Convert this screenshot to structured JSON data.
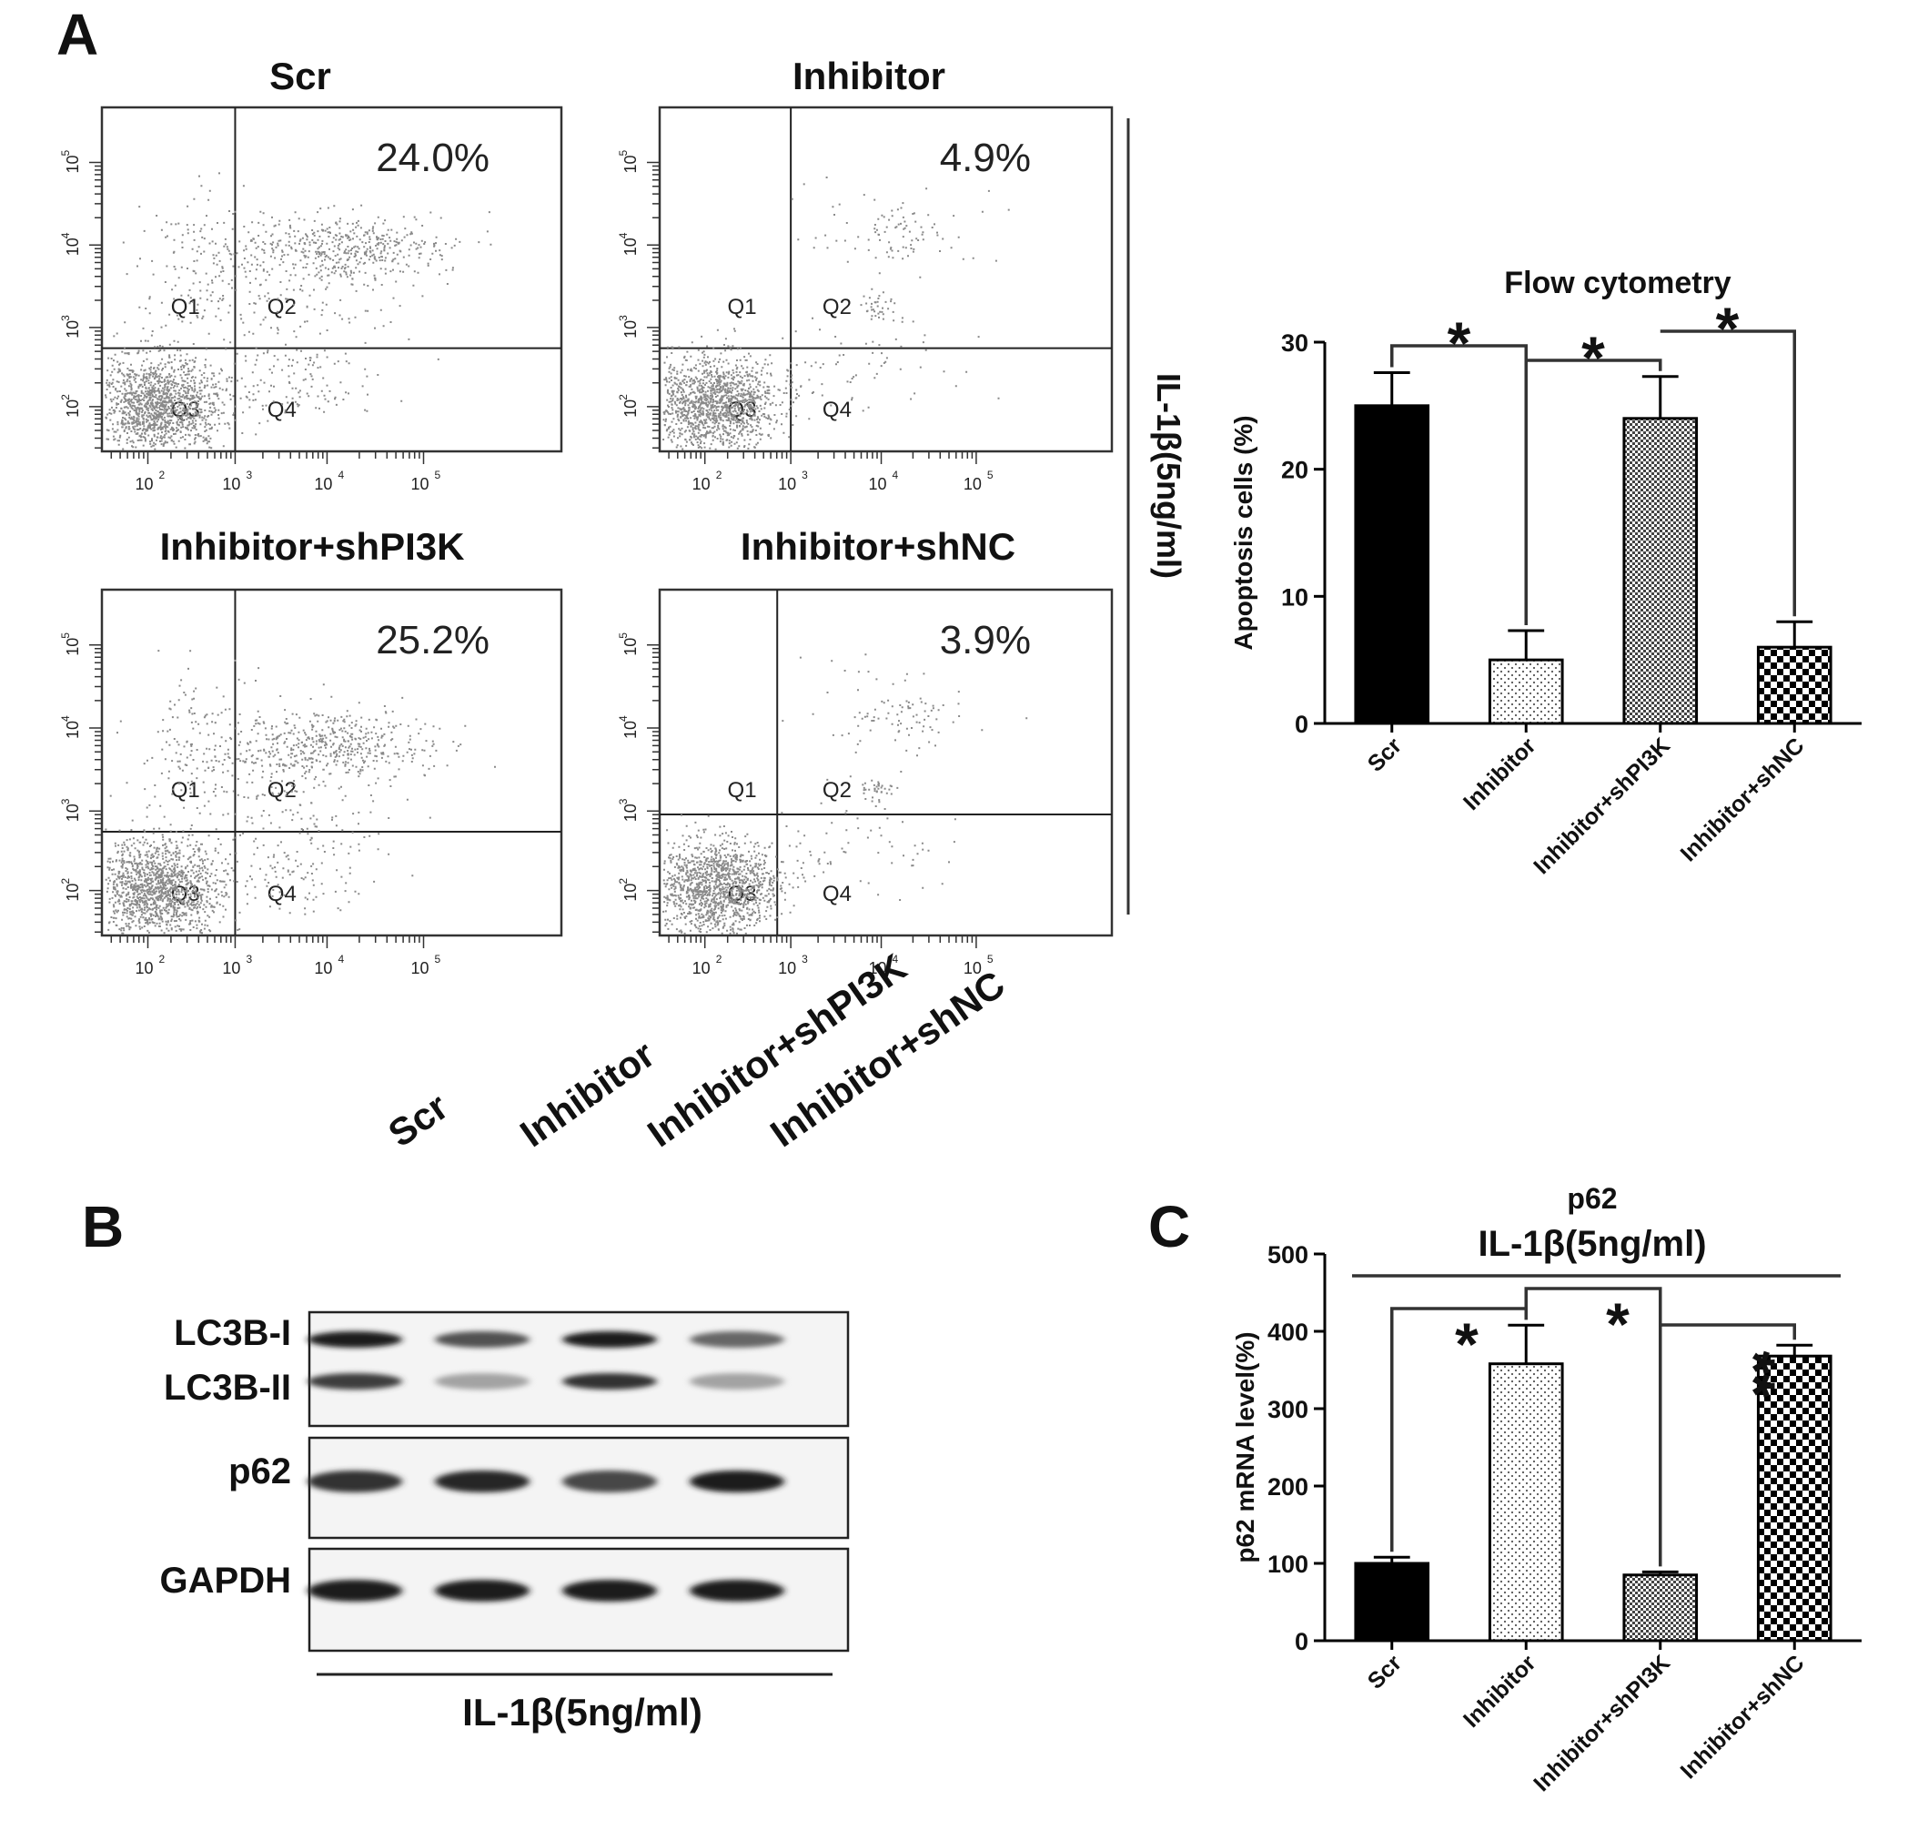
{
  "panel_letters": {
    "a": "A",
    "b": "B",
    "c": "C"
  },
  "treatment_label": "IL-1β(5ng/ml)",
  "flow_panels": [
    {
      "title": "Scr",
      "percent": "24.0%",
      "h_line": 0.3,
      "v_line": 0.29,
      "profile": "apoptotic"
    },
    {
      "title": "Inhibitor",
      "percent": "4.9%",
      "h_line": 0.3,
      "v_line": 0.29,
      "profile": "protected"
    },
    {
      "title": "Inhibitor+shPI3K",
      "percent": "25.2%",
      "h_line": 0.3,
      "v_line": 0.29,
      "profile": "apoptotic"
    },
    {
      "title": "Inhibitor+shNC",
      "percent": "3.9%",
      "h_line": 0.35,
      "v_line": 0.26,
      "profile": "protected"
    }
  ],
  "quadrant_labels": [
    "Q1",
    "Q2",
    "Q3",
    "Q4"
  ],
  "flow_tick_labels": [
    "10",
    "10",
    "10",
    "10"
  ],
  "flow_tick_exponents": [
    "2",
    "3",
    "4",
    "5"
  ],
  "western": {
    "lanes": [
      "Scr",
      "Inhibitor",
      "Inhibitor+shPI3K",
      "Inhibitor+shNC"
    ],
    "blots": [
      {
        "labels": [
          "LC3B-I",
          "LC3B-II"
        ],
        "rows": [
          [
            1.0,
            0.75,
            1.0,
            0.65
          ],
          [
            0.85,
            0.35,
            0.9,
            0.35
          ]
        ]
      },
      {
        "labels": [
          "p62"
        ],
        "rows": [
          [
            0.9,
            0.95,
            0.8,
            1.0
          ]
        ]
      },
      {
        "labels": [
          "GAPDH"
        ],
        "rows": [
          [
            1.0,
            1.0,
            1.0,
            1.0
          ]
        ]
      }
    ]
  },
  "chart_data": [
    {
      "type": "bar",
      "title": "Flow cytometry",
      "ylabel": "Apoptosis cells (%)",
      "categories": [
        "Scr",
        "Inhibitor",
        "Inhibitor+shPI3K",
        "Inhibitor+shNC"
      ],
      "values": [
        25,
        5,
        24,
        6
      ],
      "errors": [
        2.6,
        2.3,
        3.3,
        2.0
      ],
      "yticks": [
        0,
        10,
        20,
        30
      ],
      "ylim": [
        0,
        30
      ],
      "fills": [
        "solid",
        "dots",
        "fine-check",
        "check"
      ],
      "significance": [
        "*",
        "*",
        "*"
      ]
    },
    {
      "type": "bar",
      "title": "p62",
      "subtitle": "IL-1β(5ng/ml)",
      "ylabel": "p62 mRNA level(%)",
      "categories": [
        "Scr",
        "Inhibitor",
        "Inhibitor+shPI3K",
        "Inhibitor+shNC"
      ],
      "values": [
        100,
        358,
        85,
        368
      ],
      "errors": [
        8,
        50,
        4,
        14
      ],
      "yticks": [
        0,
        100,
        200,
        300,
        400,
        500
      ],
      "ylim": [
        0,
        500
      ],
      "fills": [
        "solid",
        "dots",
        "fine-check",
        "check"
      ],
      "significance": [
        "*",
        "*",
        "**"
      ]
    }
  ]
}
